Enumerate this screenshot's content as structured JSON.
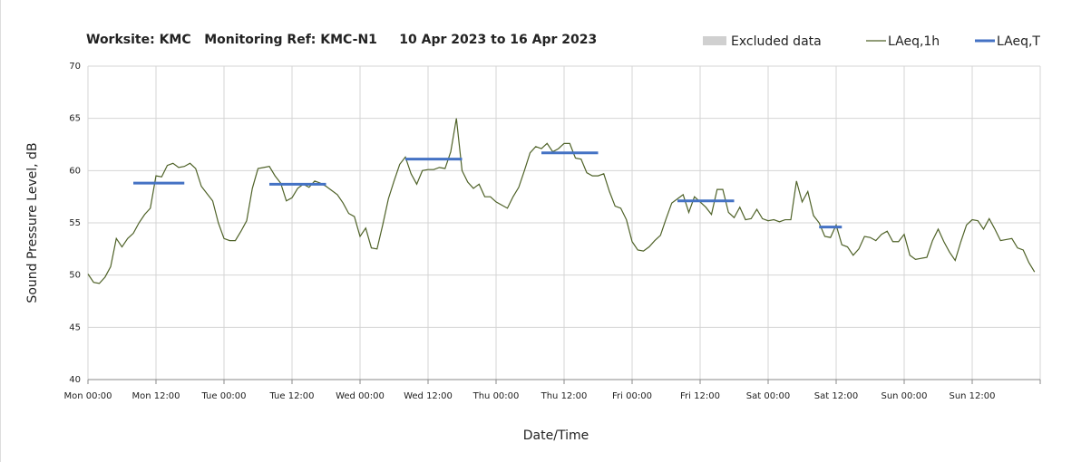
{
  "chart_data": {
    "type": "line",
    "title": "Worksite: KMC   Monitoring Ref: KMC-N1     10 Apr 2023 to 16 Apr 2023",
    "x_label": "Date/Time",
    "y_label": "Sound Pressure Level, dB",
    "xlim": [
      0,
      168
    ],
    "xticks": [
      {
        "value": 0,
        "label": "Mon 00:00"
      },
      {
        "value": 12,
        "label": "Mon 12:00"
      },
      {
        "value": 24,
        "label": "Tue 00:00"
      },
      {
        "value": 36,
        "label": "Tue 12:00"
      },
      {
        "value": 48,
        "label": "Wed 00:00"
      },
      {
        "value": 60,
        "label": "Wed 12:00"
      },
      {
        "value": 72,
        "label": "Thu 00:00"
      },
      {
        "value": 84,
        "label": "Thu 12:00"
      },
      {
        "value": 96,
        "label": "Fri 00:00"
      },
      {
        "value": 108,
        "label": "Fri 12:00"
      },
      {
        "value": 120,
        "label": "Sat 00:00"
      },
      {
        "value": 132,
        "label": "Sat 12:00"
      },
      {
        "value": 144,
        "label": "Sun 00:00"
      },
      {
        "value": 156,
        "label": "Sun 12:00"
      },
      {
        "value": 168,
        "label": ""
      }
    ],
    "ylim": [
      40,
      70
    ],
    "yticks": [
      40,
      45,
      50,
      55,
      60,
      65,
      70
    ],
    "grid": true,
    "series": [
      {
        "name": "Excluded data",
        "color": "#d0d0d0",
        "values": []
      },
      {
        "name": "LAeq,1h",
        "color": "#4f6228",
        "x": [
          0,
          1,
          2,
          3,
          4,
          5,
          6,
          7,
          8,
          9,
          10,
          11,
          12,
          13,
          14,
          15,
          16,
          17,
          18,
          19,
          20,
          21,
          22,
          23,
          24,
          25,
          26,
          27,
          28,
          29,
          30,
          31,
          32,
          33,
          34,
          35,
          36,
          37,
          38,
          39,
          40,
          41,
          42,
          43,
          44,
          45,
          46,
          47,
          48,
          49,
          50,
          51,
          52,
          53,
          54,
          55,
          56,
          57,
          58,
          59,
          60,
          61,
          62,
          63,
          64,
          65,
          66,
          67,
          68,
          69,
          70,
          71,
          72,
          73,
          74,
          75,
          76,
          77,
          78,
          79,
          80,
          81,
          82,
          83,
          84,
          85,
          86,
          87,
          88,
          89,
          90,
          91,
          92,
          93,
          94,
          95,
          96,
          97,
          98,
          99,
          100,
          101,
          102,
          103,
          104,
          105,
          106,
          107,
          108,
          109,
          110,
          111,
          112,
          113,
          114,
          115,
          116,
          117,
          118,
          119,
          120,
          121,
          122,
          123,
          124,
          125,
          126,
          127,
          128,
          129,
          130,
          131,
          132,
          133,
          134,
          135,
          136,
          137,
          138,
          139,
          140,
          141,
          142,
          143,
          144,
          145,
          146,
          147,
          148,
          149,
          150,
          151,
          152,
          153,
          154,
          155,
          156,
          157,
          158,
          159,
          160,
          161,
          162,
          163,
          164,
          165,
          166,
          167
        ],
        "values": [
          50.1,
          49.3,
          49.2,
          49.8,
          50.8,
          53.5,
          52.7,
          53.5,
          54,
          55,
          55.8,
          56.4,
          59.5,
          59.4,
          60.5,
          60.7,
          60.3,
          60.4,
          60.7,
          60.2,
          58.5,
          57.8,
          57.1,
          55,
          53.5,
          53.3,
          53.3,
          54.2,
          55.2,
          58.3,
          60.2,
          60.3,
          60.4,
          59.5,
          58.8,
          57.1,
          57.4,
          58.3,
          58.7,
          58.4,
          59,
          58.8,
          58.5,
          58.1,
          57.7,
          56.9,
          55.9,
          55.6,
          53.7,
          54.5,
          52.6,
          52.5,
          54.8,
          57.3,
          59,
          60.6,
          61.3,
          59.7,
          58.7,
          60,
          60.1,
          60.1,
          60.3,
          60.2,
          61.8,
          65,
          60,
          58.9,
          58.3,
          58.7,
          57.5,
          57.5,
          57,
          56.7,
          56.4,
          57.5,
          58.4,
          60,
          61.7,
          62.3,
          62.1,
          62.6,
          61.8,
          62.1,
          62.6,
          62.6,
          61.2,
          61.1,
          59.8,
          59.5,
          59.5,
          59.7,
          58,
          56.6,
          56.4,
          55.3,
          53.2,
          52.4,
          52.3,
          52.7,
          53.3,
          53.8,
          55.4,
          56.9,
          57.3,
          57.7,
          56,
          57.5,
          57,
          56.5,
          55.8,
          58.2,
          58.2,
          56,
          55.5,
          56.5,
          55.3,
          55.4,
          56.3,
          55.4,
          55.2,
          55.3,
          55.1,
          55.3,
          55.3,
          59,
          57,
          58,
          55.7,
          55,
          53.7,
          53.6,
          54.8,
          52.9,
          52.7,
          51.9,
          52.5,
          53.7,
          53.6,
          53.3,
          53.9,
          54.2,
          53.2,
          53.2,
          53.9,
          51.9,
          51.5,
          51.6,
          51.7,
          53.3,
          54.4,
          53.2,
          52.2,
          51.4,
          53.2,
          54.8,
          55.3,
          55.2,
          54.4,
          55.4,
          54.4,
          53.3,
          53.4,
          53.5,
          52.6,
          52.4,
          51.2,
          50.3
        ]
      },
      {
        "name": "LAeq,T",
        "color": "#4472c4",
        "x_start": [
          8,
          32,
          56,
          80,
          104,
          129
        ],
        "x_end": [
          17,
          42,
          66,
          90,
          114,
          133
        ],
        "values": [
          58.8,
          58.7,
          61.1,
          61.7,
          57.1,
          54.6
        ]
      }
    ]
  }
}
